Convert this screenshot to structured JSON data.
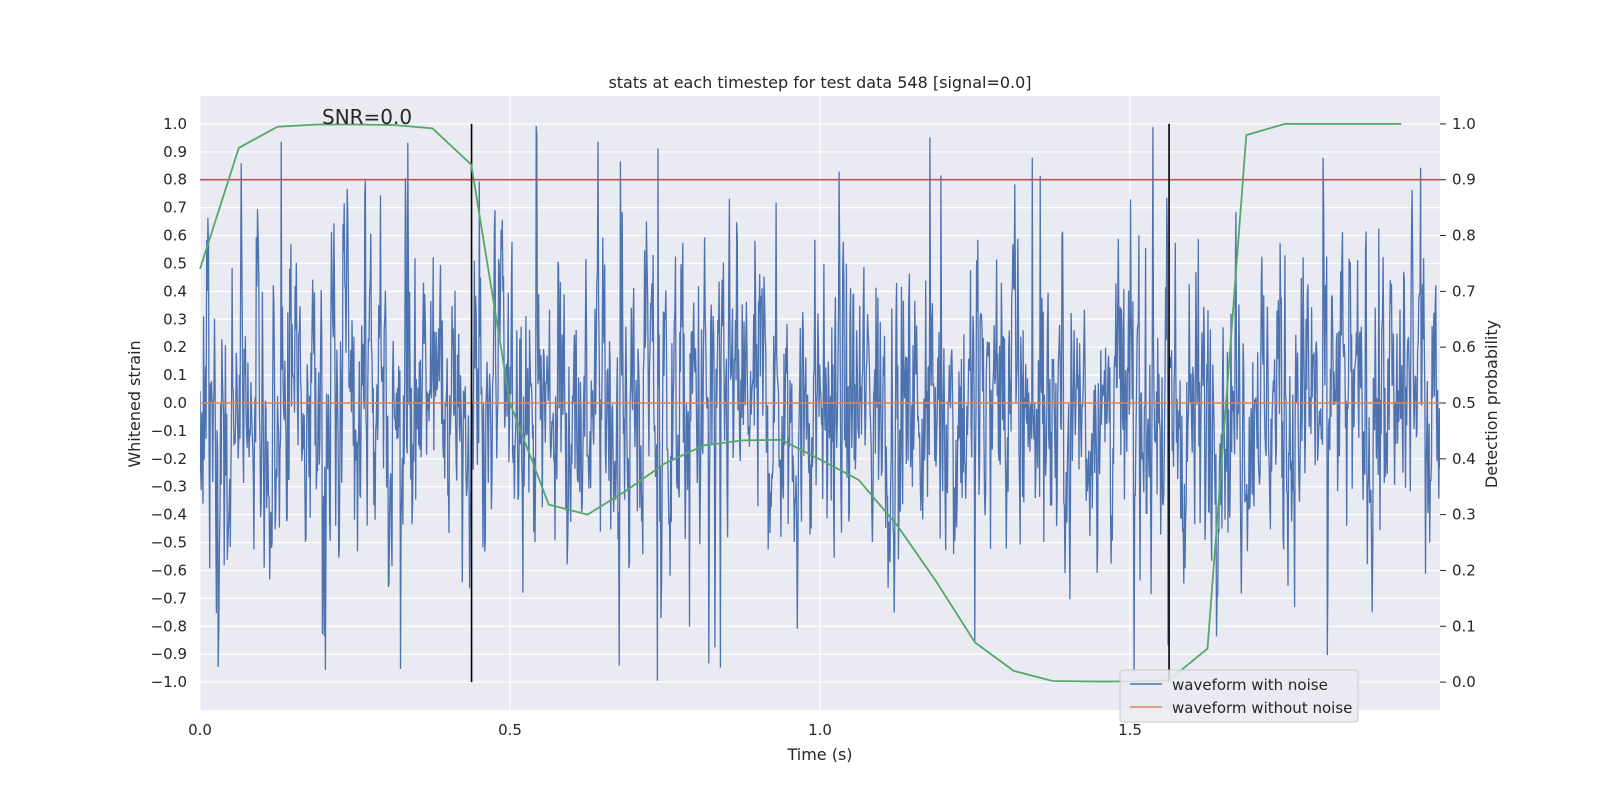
{
  "chart_data": {
    "type": "line",
    "title": "stats at each timestep for test data 548 [signal=0.0]",
    "annotation": "SNR=0.0",
    "xlabel": "Time (s)",
    "ylabel_left": "Whitened strain",
    "ylabel_right": "Detection probability",
    "xlim": [
      0.0,
      2.0
    ],
    "ylim_left": [
      -1.1,
      1.1
    ],
    "ylim_right": [
      -0.05,
      1.05
    ],
    "x_ticks": [
      0.0,
      0.5,
      1.0,
      1.5
    ],
    "x_tick_labels": [
      "0.0",
      "0.5",
      "1.0",
      "1.5"
    ],
    "y_left_ticks": [
      1.0,
      0.9,
      0.8,
      0.7,
      0.6,
      0.5,
      0.4,
      0.3,
      0.2,
      0.1,
      0.0,
      -0.1,
      -0.2,
      -0.3,
      -0.4,
      -0.5,
      -0.6,
      -0.7,
      -0.8,
      -0.9,
      -1.0
    ],
    "y_left_tick_labels": [
      "1.0",
      "0.9",
      "0.8",
      "0.7",
      "0.6",
      "0.5",
      "0.4",
      "0.3",
      "0.2",
      "0.1",
      "0.0",
      "−0.1",
      "−0.2",
      "−0.3",
      "−0.4",
      "−0.5",
      "−0.6",
      "−0.7",
      "−0.8",
      "−0.9",
      "−1.0"
    ],
    "y_right_ticks": [
      1.0,
      0.9,
      0.8,
      0.7,
      0.6,
      0.5,
      0.4,
      0.3,
      0.2,
      0.1,
      0.0
    ],
    "y_right_tick_labels": [
      "1.0",
      "0.9",
      "0.8",
      "0.7",
      "0.6",
      "0.5",
      "0.4",
      "0.3",
      "0.2",
      "0.1",
      "0.0"
    ],
    "threshold": {
      "value": 0.9,
      "axis": "right",
      "color": "#c44e52"
    },
    "vertical_markers": [
      0.438,
      1.563
    ],
    "series": [
      {
        "name": "waveform with noise",
        "color": "#4c72b0",
        "axis": "left",
        "kind": "noise",
        "x_range": [
          0.0,
          2.0
        ],
        "approx_abs_max": 1.0,
        "in_legend": true
      },
      {
        "name": "waveform without noise",
        "color": "#dd8452",
        "axis": "left",
        "x": [
          0.0,
          2.0
        ],
        "values": [
          0.0,
          0.0
        ],
        "in_legend": true
      },
      {
        "name": "detection probability",
        "color": "#55a868",
        "axis": "right",
        "in_legend": false,
        "x": [
          0.0,
          0.0625,
          0.125,
          0.1875,
          0.25,
          0.3125,
          0.375,
          0.4375,
          0.5,
          0.5625,
          0.625,
          0.6875,
          0.75,
          0.8125,
          0.875,
          0.9375,
          1.0,
          1.0625,
          1.125,
          1.1875,
          1.25,
          1.3125,
          1.375,
          1.4375,
          1.5,
          1.5625,
          1.625,
          1.6875,
          1.75,
          1.8125,
          1.875,
          1.9375
        ],
        "values": [
          0.74,
          0.957,
          0.995,
          0.999,
          0.999,
          0.998,
          0.992,
          0.927,
          0.5,
          0.318,
          0.3,
          0.343,
          0.392,
          0.424,
          0.433,
          0.434,
          0.399,
          0.362,
          0.28,
          0.18,
          0.071,
          0.02,
          0.002,
          0.001,
          0.001,
          0.003,
          0.06,
          0.98,
          1.0,
          1.0,
          1.0,
          1.0
        ]
      }
    ]
  }
}
